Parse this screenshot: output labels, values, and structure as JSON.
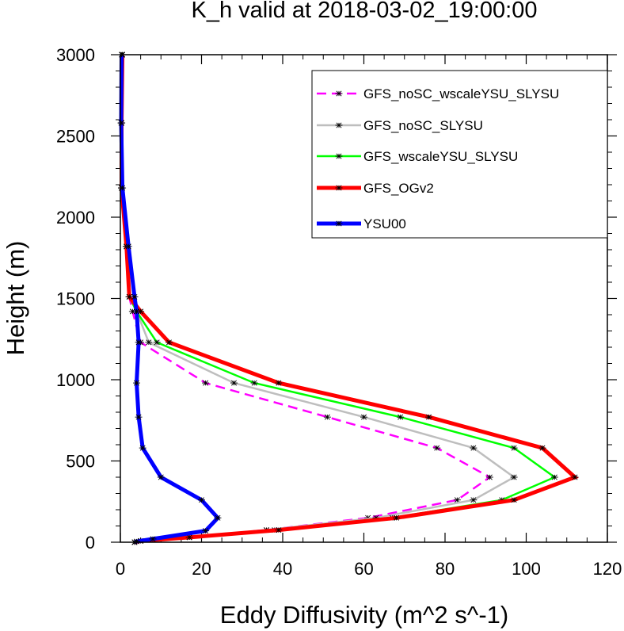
{
  "chart_data": {
    "type": "line",
    "title": "K_h valid at 2018-03-02_19:00:00",
    "xlabel": "Eddy Diffusivity (m^2 s^-1)",
    "ylabel": "Height (m)",
    "xlim": [
      0,
      120
    ],
    "ylim": [
      0,
      3000
    ],
    "xticks": [
      "0",
      "20",
      "40",
      "60",
      "80",
      "100",
      "120"
    ],
    "yticks": [
      "0",
      "500",
      "1000",
      "1500",
      "2000",
      "2500",
      "3000"
    ],
    "legend_position": "top-right",
    "grid": false,
    "series": [
      {
        "name": "GFS_noSC_wscaleYSU_SLYSU",
        "color": "#ff00ff",
        "dashed": true,
        "thick": false,
        "points": [
          [
            0.5,
            3000
          ],
          [
            0.3,
            2580
          ],
          [
            0.3,
            2180
          ],
          [
            1.5,
            1820
          ],
          [
            2.2,
            1510
          ],
          [
            3,
            1420
          ],
          [
            5,
            1230
          ],
          [
            21,
            980
          ],
          [
            51,
            770
          ],
          [
            78,
            580
          ],
          [
            91,
            400
          ],
          [
            83,
            260
          ],
          [
            61,
            150
          ],
          [
            36,
            75
          ],
          [
            17,
            30
          ],
          [
            5,
            8
          ],
          [
            3.5,
            0
          ]
        ]
      },
      {
        "name": "GFS_noSC_SLYSU",
        "color": "#bebebe",
        "dashed": false,
        "thick": false,
        "points": [
          [
            0.5,
            3000
          ],
          [
            0.3,
            2580
          ],
          [
            0.3,
            2180
          ],
          [
            1.5,
            1820
          ],
          [
            2.2,
            1510
          ],
          [
            4,
            1420
          ],
          [
            7,
            1230
          ],
          [
            28,
            980
          ],
          [
            60,
            770
          ],
          [
            87,
            580
          ],
          [
            97,
            400
          ],
          [
            87,
            260
          ],
          [
            63,
            150
          ],
          [
            36,
            75
          ],
          [
            17,
            30
          ],
          [
            5,
            8
          ],
          [
            3.5,
            0
          ]
        ]
      },
      {
        "name": "GFS_wscaleYSU_SLYSU",
        "color": "#00ff00",
        "dashed": false,
        "thick": false,
        "points": [
          [
            0.5,
            3000
          ],
          [
            0.3,
            2580
          ],
          [
            0.3,
            2180
          ],
          [
            1.5,
            1820
          ],
          [
            2.2,
            1510
          ],
          [
            4,
            1420
          ],
          [
            9,
            1230
          ],
          [
            33,
            980
          ],
          [
            69,
            770
          ],
          [
            97,
            580
          ],
          [
            107,
            400
          ],
          [
            94,
            260
          ],
          [
            67,
            150
          ],
          [
            38,
            75
          ],
          [
            17,
            30
          ],
          [
            5,
            8
          ],
          [
            3.5,
            0
          ]
        ]
      },
      {
        "name": "GFS_OGv2",
        "color": "#ff0000",
        "dashed": false,
        "thick": true,
        "points": [
          [
            0.5,
            3000
          ],
          [
            0.3,
            2580
          ],
          [
            0.3,
            2180
          ],
          [
            1.5,
            1820
          ],
          [
            2.2,
            1510
          ],
          [
            5,
            1420
          ],
          [
            12,
            1230
          ],
          [
            39,
            980
          ],
          [
            76,
            770
          ],
          [
            104,
            580
          ],
          [
            112,
            400
          ],
          [
            97,
            260
          ],
          [
            68,
            150
          ],
          [
            39,
            75
          ],
          [
            17,
            30
          ],
          [
            5,
            8
          ],
          [
            3.5,
            0
          ]
        ]
      },
      {
        "name": "YSU00",
        "color": "#0000ff",
        "dashed": false,
        "thick": true,
        "points": [
          [
            0.3,
            3000
          ],
          [
            0.2,
            2580
          ],
          [
            0.5,
            2180
          ],
          [
            2,
            1820
          ],
          [
            3.5,
            1510
          ],
          [
            4,
            1420
          ],
          [
            4.5,
            1230
          ],
          [
            4,
            980
          ],
          [
            4.5,
            770
          ],
          [
            5.5,
            580
          ],
          [
            10,
            400
          ],
          [
            20,
            260
          ],
          [
            24,
            150
          ],
          [
            21,
            70
          ],
          [
            8,
            20
          ],
          [
            4,
            5
          ],
          [
            3.5,
            0
          ]
        ]
      }
    ]
  }
}
